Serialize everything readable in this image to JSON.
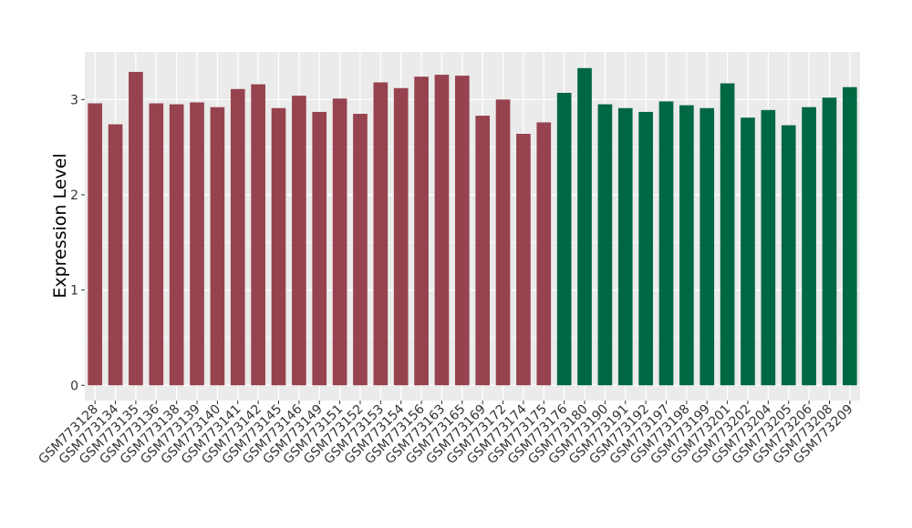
{
  "chart_data": {
    "type": "bar",
    "title": "",
    "xlabel": "",
    "ylabel": "Expression Level",
    "ylim": [
      -0.16,
      3.5
    ],
    "y_ticks": [
      "0",
      "1",
      "2",
      "3"
    ],
    "grid": true,
    "legend": "none",
    "colors": {
      "group_a": "#96434f",
      "group_b": "#006743",
      "panel": "#ebebeb",
      "gridline": "#ffffff"
    },
    "categories": [
      "GSM773128",
      "GSM773134",
      "GSM773135",
      "GSM773136",
      "GSM773138",
      "GSM773139",
      "GSM773140",
      "GSM773141",
      "GSM773142",
      "GSM773145",
      "GSM773146",
      "GSM773149",
      "GSM773151",
      "GSM773152",
      "GSM773153",
      "GSM773154",
      "GSM773156",
      "GSM773163",
      "GSM773165",
      "GSM773169",
      "GSM773172",
      "GSM773174",
      "GSM773175",
      "GSM773176",
      "GSM773180",
      "GSM773190",
      "GSM773191",
      "GSM773192",
      "GSM773197",
      "GSM773198",
      "GSM773199",
      "GSM773201",
      "GSM773202",
      "GSM773204",
      "GSM773205",
      "GSM773206",
      "GSM773208",
      "GSM773209"
    ],
    "values": [
      2.96,
      2.74,
      3.29,
      2.96,
      2.95,
      2.97,
      2.92,
      3.11,
      3.16,
      2.91,
      3.04,
      2.87,
      3.01,
      2.85,
      3.18,
      3.12,
      3.24,
      3.26,
      3.25,
      2.83,
      3.0,
      2.64,
      2.76,
      3.07,
      3.33,
      2.95,
      2.91,
      2.87,
      2.98,
      2.94,
      2.91,
      3.17,
      2.81,
      2.89,
      2.73,
      2.92,
      3.02,
      3.13
    ],
    "groups": [
      "a",
      "a",
      "a",
      "a",
      "a",
      "a",
      "a",
      "a",
      "a",
      "a",
      "a",
      "a",
      "a",
      "a",
      "a",
      "a",
      "a",
      "a",
      "a",
      "a",
      "a",
      "a",
      "a",
      "b",
      "b",
      "b",
      "b",
      "b",
      "b",
      "b",
      "b",
      "b",
      "b",
      "b",
      "b",
      "b",
      "b",
      "b"
    ]
  }
}
